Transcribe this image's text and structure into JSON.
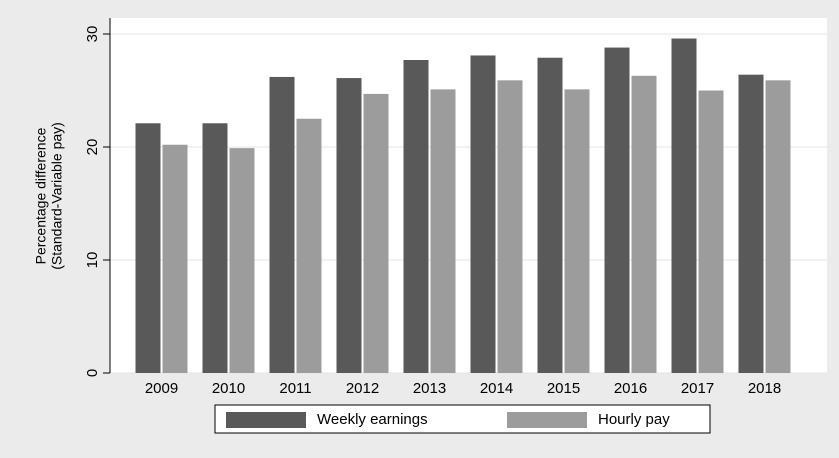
{
  "chart_data": {
    "type": "bar",
    "y_label": [
      "Percentage difference",
      "(Standard-Variable pay)"
    ],
    "categories": [
      "2009",
      "2010",
      "2011",
      "2012",
      "2013",
      "2014",
      "2015",
      "2016",
      "2017",
      "2018"
    ],
    "series": [
      {
        "name": "Weekly earnings",
        "color": "#595959",
        "values": [
          22.1,
          22.1,
          26.2,
          26.1,
          27.7,
          28.1,
          27.9,
          28.8,
          29.6,
          26.4
        ]
      },
      {
        "name": "Hourly pay",
        "color": "#9c9c9c",
        "values": [
          20.2,
          19.9,
          22.5,
          24.7,
          25.1,
          25.9,
          25.1,
          26.3,
          25.0,
          25.9
        ]
      }
    ],
    "ylim": [
      0,
      30
    ],
    "yticks": [
      0,
      10,
      20,
      30
    ],
    "grid": true
  }
}
